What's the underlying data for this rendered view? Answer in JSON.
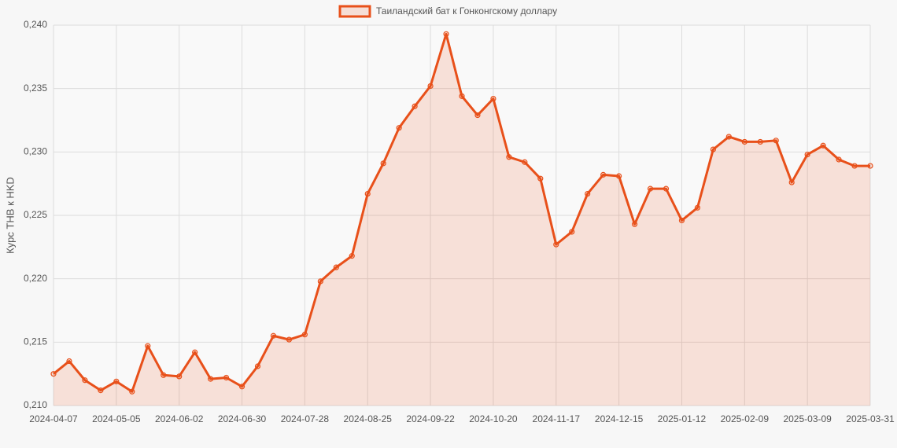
{
  "chart_data": {
    "type": "line",
    "y_label": "Курс THB к HKD",
    "categories": [
      "2024-04-07",
      null,
      null,
      null,
      "2024-05-05",
      null,
      null,
      null,
      "2024-06-02",
      null,
      null,
      null,
      "2024-06-30",
      null,
      null,
      null,
      "2024-07-28",
      null,
      null,
      null,
      "2024-08-25",
      null,
      null,
      null,
      "2024-09-22",
      null,
      null,
      null,
      "2024-10-20",
      null,
      null,
      null,
      "2024-11-17",
      null,
      null,
      null,
      "2024-12-15",
      null,
      null,
      null,
      "2025-01-12",
      null,
      null,
      null,
      "2025-02-09",
      null,
      null,
      null,
      "2025-03-09",
      null,
      null,
      null,
      "2025-03-31"
    ],
    "series": [
      {
        "name": "Таиландский бат к Гонконгскому доллару",
        "color": "#e8501a",
        "fill": "rgba(232,80,26,0.15)",
        "values": [
          0.2125,
          0.2135,
          0.212,
          0.2112,
          0.2119,
          0.2111,
          0.2147,
          0.2124,
          0.2123,
          0.2142,
          0.2121,
          0.2122,
          0.2115,
          0.2131,
          0.2155,
          0.2152,
          0.2156,
          0.2198,
          0.2209,
          0.2218,
          0.2267,
          0.2291,
          0.2319,
          0.2336,
          0.2352,
          0.2393,
          0.2344,
          0.2329,
          0.2342,
          0.2296,
          0.2292,
          0.2279,
          0.2227,
          0.2237,
          0.2267,
          0.2282,
          0.2281,
          0.2243,
          0.2271,
          0.2271,
          0.2246,
          0.2256,
          0.2302,
          0.2312,
          0.2308,
          0.2308,
          0.2309,
          0.2276,
          0.2298,
          0.2305,
          0.2294,
          0.2289,
          0.2289
        ]
      }
    ],
    "ylim": [
      0.21,
      0.24
    ],
    "yticks": [
      {
        "value": 0.21,
        "label": "0,210"
      },
      {
        "value": 0.215,
        "label": "0,215"
      },
      {
        "value": 0.22,
        "label": "0,220"
      },
      {
        "value": 0.225,
        "label": "0,225"
      },
      {
        "value": 0.23,
        "label": "0,230"
      },
      {
        "value": 0.235,
        "label": "0,235"
      },
      {
        "value": 0.24,
        "label": "0,240"
      }
    ],
    "grid": true,
    "legend": "top"
  }
}
